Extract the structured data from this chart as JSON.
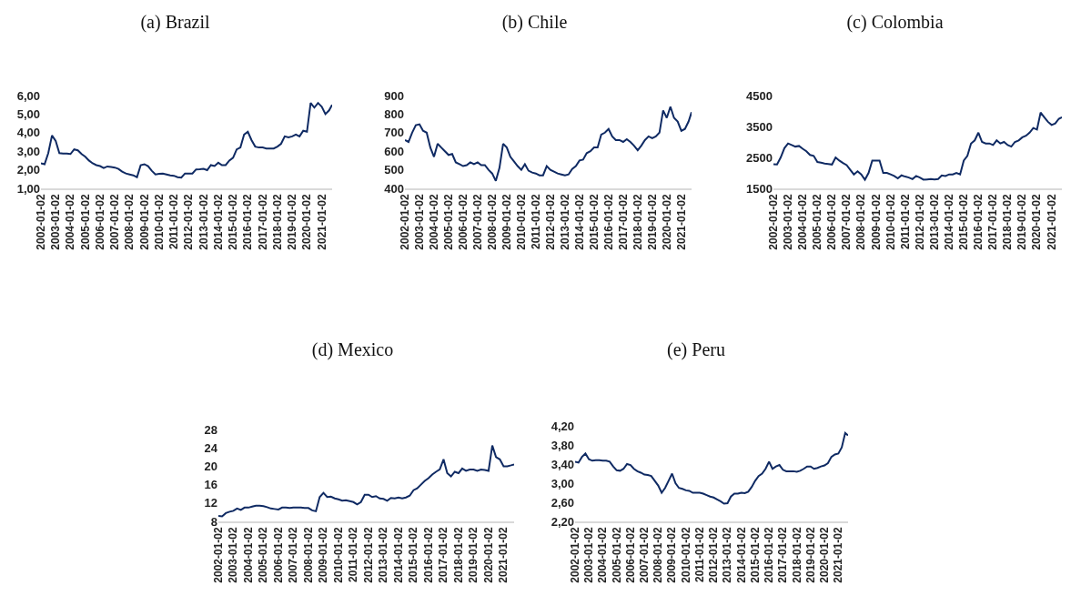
{
  "chart_data": [
    {
      "type": "line",
      "title": "(a) Brazil",
      "x": [
        "2002-01-02",
        "2002-04-02",
        "2002-07-02",
        "2002-10-02",
        "2003-01-02",
        "2003-04-02",
        "2003-07-02",
        "2003-10-02",
        "2004-01-02",
        "2004-04-02",
        "2004-07-02",
        "2004-10-02",
        "2005-01-02",
        "2005-04-02",
        "2005-07-02",
        "2005-10-02",
        "2006-01-02",
        "2006-04-02",
        "2006-07-02",
        "2006-10-02",
        "2007-01-02",
        "2007-04-02",
        "2007-07-02",
        "2007-10-02",
        "2008-01-02",
        "2008-04-02",
        "2008-07-02",
        "2008-10-02",
        "2009-01-02",
        "2009-04-02",
        "2009-07-02",
        "2009-10-02",
        "2010-01-02",
        "2010-04-02",
        "2010-07-02",
        "2010-10-02",
        "2011-01-02",
        "2011-04-02",
        "2011-07-02",
        "2011-10-02",
        "2012-01-02",
        "2012-04-02",
        "2012-07-02",
        "2012-10-02",
        "2013-01-02",
        "2013-04-02",
        "2013-07-02",
        "2013-10-02",
        "2014-01-02",
        "2014-04-02",
        "2014-07-02",
        "2014-10-02",
        "2015-01-02",
        "2015-04-02",
        "2015-07-02",
        "2015-10-02",
        "2016-01-02",
        "2016-04-02",
        "2016-07-02",
        "2016-10-02",
        "2017-01-02",
        "2017-04-02",
        "2017-07-02",
        "2017-10-02",
        "2018-01-02",
        "2018-04-02",
        "2018-07-02",
        "2018-10-02",
        "2019-01-02",
        "2019-04-02",
        "2019-07-02",
        "2019-10-02",
        "2020-01-02",
        "2020-04-02",
        "2020-07-02",
        "2020-10-02",
        "2021-01-02",
        "2021-04-02",
        "2021-07-02",
        "2021-09-15"
      ],
      "series": [
        {
          "color": "#0f2a63",
          "values": [
            2.35,
            2.3,
            2.9,
            3.85,
            3.55,
            2.9,
            2.88,
            2.88,
            2.85,
            3.1,
            3.05,
            2.85,
            2.7,
            2.5,
            2.35,
            2.25,
            2.2,
            2.1,
            2.18,
            2.15,
            2.12,
            2.05,
            1.9,
            1.8,
            1.75,
            1.7,
            1.6,
            2.25,
            2.3,
            2.2,
            1.95,
            1.75,
            1.78,
            1.8,
            1.75,
            1.7,
            1.68,
            1.6,
            1.58,
            1.8,
            1.8,
            1.8,
            2.02,
            2.03,
            2.05,
            1.98,
            2.25,
            2.2,
            2.38,
            2.25,
            2.25,
            2.5,
            2.65,
            3.1,
            3.2,
            3.9,
            4.05,
            3.6,
            3.25,
            3.2,
            3.2,
            3.15,
            3.15,
            3.15,
            3.25,
            3.4,
            3.8,
            3.75,
            3.8,
            3.9,
            3.8,
            4.1,
            4.05,
            5.6,
            5.35,
            5.6,
            5.4,
            5.0,
            5.2,
            5.5
          ]
        }
      ],
      "xlim": [
        "2002-01-02",
        "2021-09-15"
      ],
      "xticks": [
        "2002-01-02",
        "2003-01-02",
        "2004-01-02",
        "2005-01-02",
        "2006-01-02",
        "2007-01-02",
        "2008-01-02",
        "2009-01-02",
        "2010-01-02",
        "2011-01-02",
        "2012-01-02",
        "2013-01-02",
        "2014-01-02",
        "2015-01-02",
        "2016-01-02",
        "2017-01-02",
        "2018-01-02",
        "2019-01-02",
        "2020-01-02",
        "2021-01-02"
      ],
      "ylim": [
        1,
        6
      ],
      "yticks": [
        {
          "value": 1,
          "label": "1,00"
        },
        {
          "value": 2,
          "label": "2,00"
        },
        {
          "value": 3,
          "label": "3,00"
        },
        {
          "value": 4,
          "label": "4,00"
        },
        {
          "value": 5,
          "label": "5,00"
        },
        {
          "value": 6,
          "label": "6,00"
        }
      ]
    },
    {
      "type": "line",
      "title": "(b) Chile",
      "x": [
        "2002-01-02",
        "2002-04-02",
        "2002-07-02",
        "2002-10-02",
        "2003-01-02",
        "2003-04-02",
        "2003-07-02",
        "2003-10-02",
        "2004-01-02",
        "2004-04-02",
        "2004-07-02",
        "2004-10-02",
        "2005-01-02",
        "2005-04-02",
        "2005-07-02",
        "2005-10-02",
        "2006-01-02",
        "2006-04-02",
        "2006-07-02",
        "2006-10-02",
        "2007-01-02",
        "2007-04-02",
        "2007-07-02",
        "2007-10-02",
        "2008-01-02",
        "2008-04-02",
        "2008-07-02",
        "2008-10-02",
        "2009-01-02",
        "2009-04-02",
        "2009-07-02",
        "2009-10-02",
        "2010-01-02",
        "2010-04-02",
        "2010-07-02",
        "2010-10-02",
        "2011-01-02",
        "2011-04-02",
        "2011-07-02",
        "2011-10-02",
        "2012-01-02",
        "2012-04-02",
        "2012-07-02",
        "2012-10-02",
        "2013-01-02",
        "2013-04-02",
        "2013-07-02",
        "2013-10-02",
        "2014-01-02",
        "2014-04-02",
        "2014-07-02",
        "2014-10-02",
        "2015-01-02",
        "2015-04-02",
        "2015-07-02",
        "2015-10-02",
        "2016-01-02",
        "2016-04-02",
        "2016-07-02",
        "2016-10-02",
        "2017-01-02",
        "2017-04-02",
        "2017-07-02",
        "2017-10-02",
        "2018-01-02",
        "2018-04-02",
        "2018-07-02",
        "2018-10-02",
        "2019-01-02",
        "2019-04-02",
        "2019-07-02",
        "2019-10-02",
        "2020-01-02",
        "2020-04-02",
        "2020-07-02",
        "2020-10-02",
        "2021-01-02",
        "2021-04-02",
        "2021-07-02",
        "2021-09-15"
      ],
      "series": [
        {
          "color": "#0f2a63",
          "values": [
            660,
            650,
            700,
            740,
            745,
            710,
            700,
            620,
            570,
            640,
            620,
            600,
            580,
            585,
            540,
            530,
            520,
            525,
            540,
            530,
            540,
            525,
            525,
            500,
            480,
            440,
            510,
            640,
            620,
            570,
            545,
            520,
            500,
            530,
            495,
            485,
            480,
            470,
            470,
            520,
            500,
            490,
            480,
            475,
            470,
            475,
            505,
            520,
            550,
            555,
            590,
            600,
            620,
            620,
            690,
            700,
            720,
            680,
            660,
            660,
            650,
            665,
            650,
            630,
            605,
            630,
            660,
            680,
            670,
            680,
            700,
            820,
            780,
            840,
            780,
            760,
            710,
            720,
            760,
            810
          ]
        }
      ],
      "xlim": [
        "2002-01-02",
        "2021-09-15"
      ],
      "xticks": [
        "2002-01-02",
        "2003-01-02",
        "2004-01-02",
        "2005-01-02",
        "2006-01-02",
        "2007-01-02",
        "2008-01-02",
        "2009-01-02",
        "2010-01-02",
        "2011-01-02",
        "2012-01-02",
        "2013-01-02",
        "2014-01-02",
        "2015-01-02",
        "2016-01-02",
        "2017-01-02",
        "2018-01-02",
        "2019-01-02",
        "2020-01-02",
        "2021-01-02"
      ],
      "ylim": [
        400,
        900
      ],
      "yticks": [
        400,
        500,
        600,
        700,
        800,
        900
      ]
    },
    {
      "type": "line",
      "title": "(c) Colombia",
      "x": [
        "2002-01-02",
        "2002-04-02",
        "2002-07-02",
        "2002-10-02",
        "2003-01-02",
        "2003-04-02",
        "2003-07-02",
        "2003-10-02",
        "2004-01-02",
        "2004-04-02",
        "2004-07-02",
        "2004-10-02",
        "2005-01-02",
        "2005-04-02",
        "2005-07-02",
        "2005-10-02",
        "2006-01-02",
        "2006-04-02",
        "2006-07-02",
        "2006-10-02",
        "2007-01-02",
        "2007-04-02",
        "2007-07-02",
        "2007-10-02",
        "2008-01-02",
        "2008-04-02",
        "2008-07-02",
        "2008-10-02",
        "2009-01-02",
        "2009-04-02",
        "2009-07-02",
        "2009-10-02",
        "2010-01-02",
        "2010-04-02",
        "2010-07-02",
        "2010-10-02",
        "2011-01-02",
        "2011-04-02",
        "2011-07-02",
        "2011-10-02",
        "2012-01-02",
        "2012-04-02",
        "2012-07-02",
        "2012-10-02",
        "2013-01-02",
        "2013-04-02",
        "2013-07-02",
        "2013-10-02",
        "2014-01-02",
        "2014-04-02",
        "2014-07-02",
        "2014-10-02",
        "2015-01-02",
        "2015-04-02",
        "2015-07-02",
        "2015-10-02",
        "2016-01-02",
        "2016-04-02",
        "2016-07-02",
        "2016-10-02",
        "2017-01-02",
        "2017-04-02",
        "2017-07-02",
        "2017-10-02",
        "2018-01-02",
        "2018-04-02",
        "2018-07-02",
        "2018-10-02",
        "2019-01-02",
        "2019-04-02",
        "2019-07-02",
        "2019-10-02",
        "2020-01-02",
        "2020-04-02",
        "2020-07-02",
        "2020-10-02",
        "2021-01-02",
        "2021-04-02",
        "2021-07-02",
        "2021-09-15"
      ],
      "series": [
        {
          "color": "#0f2a63",
          "values": [
            2280,
            2270,
            2500,
            2800,
            2950,
            2900,
            2850,
            2870,
            2780,
            2700,
            2580,
            2550,
            2350,
            2330,
            2300,
            2290,
            2270,
            2500,
            2400,
            2320,
            2250,
            2100,
            1950,
            2050,
            1950,
            1780,
            2000,
            2400,
            2400,
            2400,
            2000,
            2000,
            1950,
            1900,
            1820,
            1920,
            1880,
            1850,
            1800,
            1900,
            1850,
            1780,
            1790,
            1800,
            1790,
            1800,
            1920,
            1900,
            1950,
            1950,
            2000,
            1950,
            2400,
            2550,
            2950,
            3050,
            3300,
            3000,
            2950,
            2950,
            2900,
            3050,
            2950,
            3000,
            2900,
            2850,
            3000,
            3050,
            3150,
            3200,
            3300,
            3450,
            3400,
            3950,
            3800,
            3650,
            3550,
            3600,
            3750,
            3800
          ]
        }
      ],
      "xlim": [
        "2002-01-02",
        "2021-09-15"
      ],
      "xticks": [
        "2002-01-02",
        "2003-01-02",
        "2004-01-02",
        "2005-01-02",
        "2006-01-02",
        "2007-01-02",
        "2008-01-02",
        "2009-01-02",
        "2010-01-02",
        "2011-01-02",
        "2012-01-02",
        "2013-01-02",
        "2014-01-02",
        "2015-01-02",
        "2016-01-02",
        "2017-01-02",
        "2018-01-02",
        "2019-01-02",
        "2020-01-02",
        "2021-01-02"
      ],
      "ylim": [
        1500,
        4500
      ],
      "yticks": [
        1500,
        2500,
        3500,
        4500
      ]
    },
    {
      "type": "line",
      "title": "(d) Mexico",
      "x": [
        "2002-01-02",
        "2002-04-02",
        "2002-07-02",
        "2002-10-02",
        "2003-01-02",
        "2003-04-02",
        "2003-07-02",
        "2003-10-02",
        "2004-01-02",
        "2004-04-02",
        "2004-07-02",
        "2004-10-02",
        "2005-01-02",
        "2005-04-02",
        "2005-07-02",
        "2005-10-02",
        "2006-01-02",
        "2006-04-02",
        "2006-07-02",
        "2006-10-02",
        "2007-01-02",
        "2007-04-02",
        "2007-07-02",
        "2007-10-02",
        "2008-01-02",
        "2008-04-02",
        "2008-07-02",
        "2008-10-02",
        "2009-01-02",
        "2009-04-02",
        "2009-07-02",
        "2009-10-02",
        "2010-01-02",
        "2010-04-02",
        "2010-07-02",
        "2010-10-02",
        "2011-01-02",
        "2011-04-02",
        "2011-07-02",
        "2011-10-02",
        "2012-01-02",
        "2012-04-02",
        "2012-07-02",
        "2012-10-02",
        "2013-01-02",
        "2013-04-02",
        "2013-07-02",
        "2013-10-02",
        "2014-01-02",
        "2014-04-02",
        "2014-07-02",
        "2014-10-02",
        "2015-01-02",
        "2015-04-02",
        "2015-07-02",
        "2015-10-02",
        "2016-01-02",
        "2016-04-02",
        "2016-07-02",
        "2016-10-02",
        "2017-01-02",
        "2017-04-02",
        "2017-07-02",
        "2017-10-02",
        "2018-01-02",
        "2018-04-02",
        "2018-07-02",
        "2018-10-02",
        "2019-01-02",
        "2019-04-02",
        "2019-07-02",
        "2019-10-02",
        "2020-01-02",
        "2020-04-02",
        "2020-07-02",
        "2020-10-02",
        "2021-01-02",
        "2021-04-02",
        "2021-07-02",
        "2021-09-15"
      ],
      "series": [
        {
          "color": "#0f2a63",
          "values": [
            9.2,
            9.1,
            9.8,
            10.1,
            10.3,
            10.8,
            10.5,
            11.0,
            11.0,
            11.2,
            11.4,
            11.4,
            11.3,
            11.1,
            10.8,
            10.7,
            10.6,
            11.0,
            11.0,
            10.9,
            11.0,
            11.0,
            11.0,
            10.9,
            10.9,
            10.4,
            10.2,
            13.3,
            14.2,
            13.3,
            13.4,
            13.0,
            12.8,
            12.5,
            12.6,
            12.4,
            12.2,
            11.7,
            12.2,
            13.8,
            13.8,
            13.3,
            13.5,
            13.0,
            12.9,
            12.5,
            13.1,
            13.0,
            13.2,
            13.0,
            13.2,
            13.6,
            14.8,
            15.2,
            16.0,
            16.8,
            17.4,
            18.2,
            18.8,
            19.3,
            21.5,
            18.5,
            17.8,
            18.8,
            18.5,
            19.5,
            19.0,
            19.3,
            19.3,
            19.0,
            19.3,
            19.2,
            19.0,
            24.5,
            22.0,
            21.5,
            20.0,
            20.0,
            20.2,
            20.4
          ]
        }
      ],
      "xlim": [
        "2002-01-02",
        "2021-09-15"
      ],
      "xticks": [
        "2002-01-02",
        "2003-01-02",
        "2004-01-02",
        "2005-01-02",
        "2006-01-02",
        "2007-01-02",
        "2008-01-02",
        "2009-01-02",
        "2010-01-02",
        "2011-01-02",
        "2012-01-02",
        "2013-01-02",
        "2014-01-02",
        "2015-01-02",
        "2016-01-02",
        "2017-01-02",
        "2018-01-02",
        "2019-01-02",
        "2020-01-02",
        "2021-01-02"
      ],
      "ylim": [
        8,
        28
      ],
      "yticks": [
        8,
        12,
        16,
        20,
        24,
        28
      ]
    },
    {
      "type": "line",
      "title": "(e) Peru",
      "x": [
        "2002-01-02",
        "2002-04-02",
        "2002-07-02",
        "2002-10-02",
        "2003-01-02",
        "2003-04-02",
        "2003-07-02",
        "2003-10-02",
        "2004-01-02",
        "2004-04-02",
        "2004-07-02",
        "2004-10-02",
        "2005-01-02",
        "2005-04-02",
        "2005-07-02",
        "2005-10-02",
        "2006-01-02",
        "2006-04-02",
        "2006-07-02",
        "2006-10-02",
        "2007-01-02",
        "2007-04-02",
        "2007-07-02",
        "2007-10-02",
        "2008-01-02",
        "2008-04-02",
        "2008-07-02",
        "2008-10-02",
        "2009-01-02",
        "2009-04-02",
        "2009-07-02",
        "2009-10-02",
        "2010-01-02",
        "2010-04-02",
        "2010-07-02",
        "2010-10-02",
        "2011-01-02",
        "2011-04-02",
        "2011-07-02",
        "2011-10-02",
        "2012-01-02",
        "2012-04-02",
        "2012-07-02",
        "2012-10-02",
        "2013-01-02",
        "2013-04-02",
        "2013-07-02",
        "2013-10-02",
        "2014-01-02",
        "2014-04-02",
        "2014-07-02",
        "2014-10-02",
        "2015-01-02",
        "2015-04-02",
        "2015-07-02",
        "2015-10-02",
        "2016-01-02",
        "2016-04-02",
        "2016-07-02",
        "2016-10-02",
        "2017-01-02",
        "2017-04-02",
        "2017-07-02",
        "2017-10-02",
        "2018-01-02",
        "2018-04-02",
        "2018-07-02",
        "2018-10-02",
        "2019-01-02",
        "2019-04-02",
        "2019-07-02",
        "2019-10-02",
        "2020-01-02",
        "2020-04-02",
        "2020-07-02",
        "2020-10-02",
        "2021-01-02",
        "2021-04-02",
        "2021-07-02",
        "2021-09-15"
      ],
      "series": [
        {
          "color": "#0f2a63",
          "values": [
            3.45,
            3.43,
            3.55,
            3.62,
            3.5,
            3.47,
            3.48,
            3.48,
            3.47,
            3.47,
            3.45,
            3.35,
            3.27,
            3.26,
            3.3,
            3.4,
            3.38,
            3.3,
            3.25,
            3.22,
            3.18,
            3.17,
            3.15,
            3.05,
            2.95,
            2.8,
            2.9,
            3.05,
            3.2,
            3.0,
            2.9,
            2.88,
            2.85,
            2.84,
            2.8,
            2.8,
            2.8,
            2.78,
            2.75,
            2.72,
            2.7,
            2.66,
            2.62,
            2.57,
            2.58,
            2.72,
            2.78,
            2.78,
            2.8,
            2.79,
            2.82,
            2.92,
            3.05,
            3.15,
            3.2,
            3.3,
            3.45,
            3.3,
            3.35,
            3.38,
            3.28,
            3.25,
            3.25,
            3.25,
            3.24,
            3.26,
            3.3,
            3.35,
            3.35,
            3.3,
            3.32,
            3.35,
            3.37,
            3.42,
            3.55,
            3.6,
            3.62,
            3.75,
            4.05,
            4.0
          ]
        }
      ],
      "xlim": [
        "2002-01-02",
        "2021-09-15"
      ],
      "xticks": [
        "2002-01-02",
        "2003-01-02",
        "2004-01-02",
        "2005-01-02",
        "2006-01-02",
        "2007-01-02",
        "2008-01-02",
        "2009-01-02",
        "2010-01-02",
        "2011-01-02",
        "2012-01-02",
        "2013-01-02",
        "2014-01-02",
        "2015-01-02",
        "2016-01-02",
        "2017-01-02",
        "2018-01-02",
        "2019-01-02",
        "2020-01-02",
        "2021-01-02"
      ],
      "ylim": [
        2.2,
        4.2
      ],
      "yticks": [
        {
          "value": 2.2,
          "label": "2,20"
        },
        {
          "value": 2.6,
          "label": "2,60"
        },
        {
          "value": 3.0,
          "label": "3,00"
        },
        {
          "value": 3.4,
          "label": "3,40"
        },
        {
          "value": 3.8,
          "label": "3,80"
        },
        {
          "value": 4.2,
          "label": "4,20"
        }
      ]
    }
  ]
}
